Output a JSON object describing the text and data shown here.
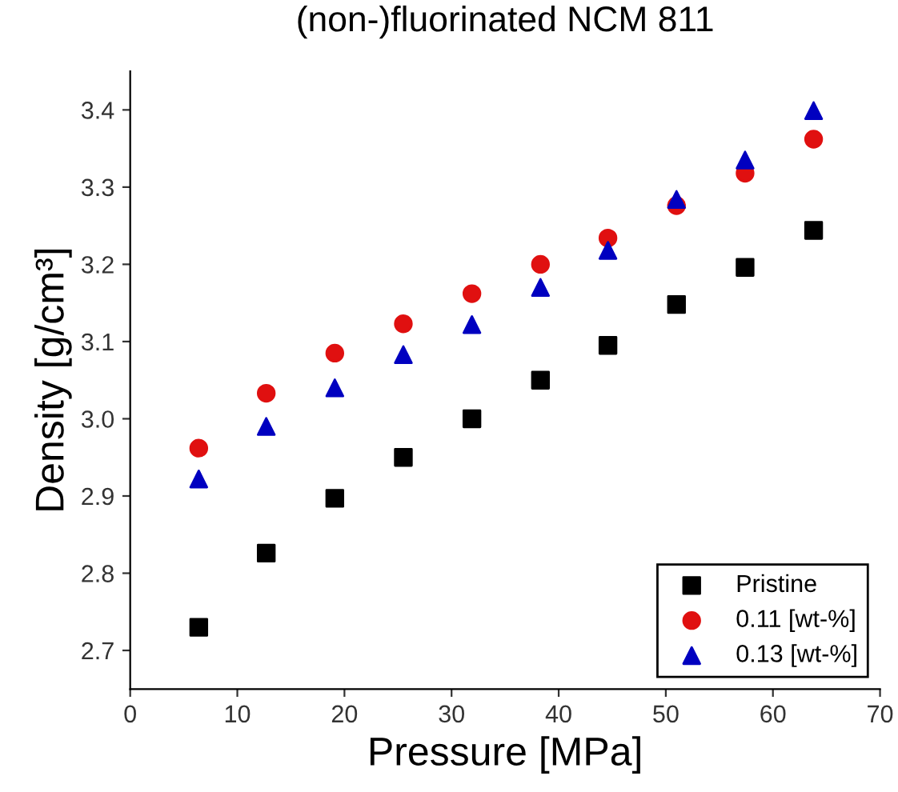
{
  "chart_data": {
    "type": "scatter",
    "title": "(non-)fluorinated NCM 811",
    "xlabel": "Pressure [MPa]",
    "ylabel": "Density [g/cm³]",
    "x": [
      6.4,
      12.7,
      19.1,
      25.5,
      31.9,
      38.3,
      44.6,
      51.0,
      57.4,
      63.8
    ],
    "series": [
      {
        "name": "Pristine",
        "color": "#000000",
        "marker": "square",
        "values": [
          2.73,
          2.826,
          2.897,
          2.95,
          3.0,
          3.05,
          3.095,
          3.148,
          3.196,
          3.244
        ]
      },
      {
        "name": "0.11 [wt-%]",
        "color": "#e01010",
        "marker": "circle",
        "values": [
          2.962,
          3.033,
          3.085,
          3.123,
          3.162,
          3.2,
          3.234,
          3.276,
          3.318,
          3.362
        ]
      },
      {
        "name": "0.13 [wt-%]",
        "color": "#0000c0",
        "marker": "triangle",
        "values": [
          2.922,
          2.99,
          3.04,
          3.083,
          3.122,
          3.17,
          3.218,
          3.284,
          3.335,
          3.399
        ]
      }
    ],
    "xlim": [
      0,
      70
    ],
    "xticks": [
      0,
      10,
      20,
      30,
      40,
      50,
      60,
      70
    ],
    "ylim": [
      2.65,
      3.45
    ],
    "yticks": [
      2.7,
      2.8,
      2.9,
      {
        "value": 3.0,
        "label": "3.0"
      },
      3.1,
      3.2,
      3.3,
      3.4
    ],
    "grid": false,
    "legend": "bottom right"
  }
}
